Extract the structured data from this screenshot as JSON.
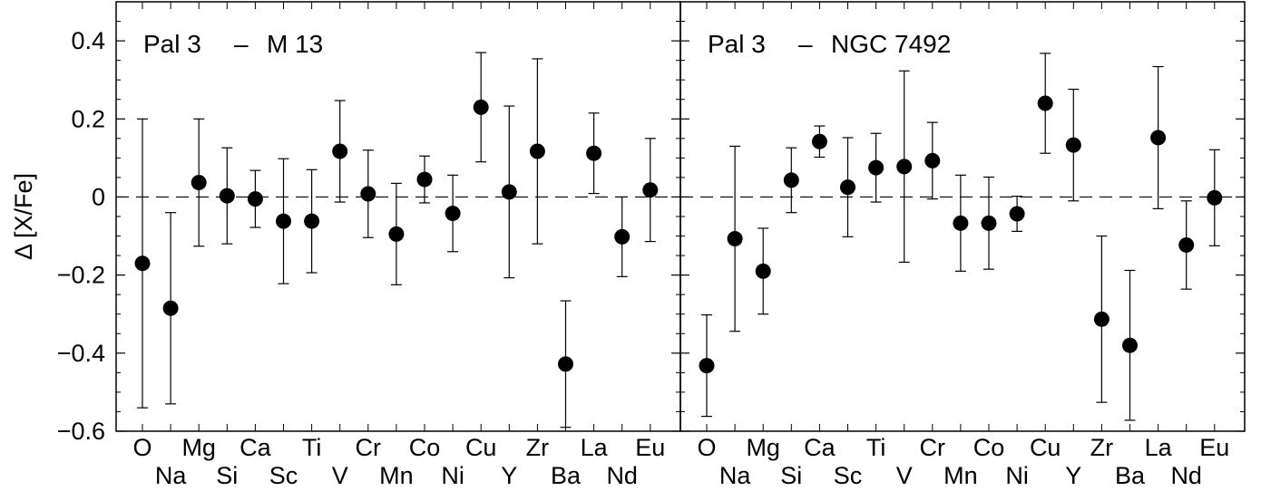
{
  "chart_data": {
    "type": "scatter",
    "ylabel": "Δ [X/Fe]",
    "ylim": [
      -0.6,
      0.5
    ],
    "yticks": [
      -0.6,
      -0.4,
      -0.2,
      0,
      0.2,
      0.4
    ],
    "ytick_labels": [
      "−0.6",
      "−0.4",
      "−0.2",
      "0",
      "0.2",
      "0.4"
    ],
    "elements": [
      "O",
      "Na",
      "Mg",
      "Si",
      "Ca",
      "Sc",
      "Ti",
      "V",
      "Cr",
      "Mn",
      "Co",
      "Ni",
      "Cu",
      "Y",
      "Zr",
      "Ba",
      "La",
      "Nd",
      "Eu"
    ],
    "reference_line": 0,
    "marker_color": "#000000",
    "panels": [
      {
        "title_left": "Pal 3",
        "title_dash": "–",
        "title_right": "M 13",
        "values": [
          -0.17,
          -0.285,
          0.037,
          0.003,
          -0.005,
          -0.062,
          -0.062,
          0.117,
          0.008,
          -0.095,
          0.045,
          -0.042,
          0.23,
          0.013,
          0.117,
          -0.428,
          0.112,
          -0.102,
          0.018
        ],
        "errors": [
          0.37,
          0.245,
          0.163,
          0.123,
          0.073,
          0.16,
          0.132,
          0.13,
          0.112,
          0.13,
          0.06,
          0.098,
          0.14,
          0.22,
          0.237,
          0.162,
          0.103,
          0.102,
          0.132
        ]
      },
      {
        "title_left": "Pal 3",
        "title_dash": "–",
        "title_right": "NGC 7492",
        "values": [
          -0.432,
          -0.107,
          -0.19,
          0.043,
          0.142,
          0.025,
          0.075,
          0.078,
          0.093,
          -0.067,
          -0.067,
          -0.043,
          0.24,
          0.133,
          -0.313,
          -0.38,
          0.152,
          -0.123,
          -0.002
        ],
        "errors": [
          0.13,
          0.237,
          0.11,
          0.083,
          0.04,
          0.127,
          0.088,
          0.245,
          0.098,
          0.123,
          0.118,
          0.045,
          0.128,
          0.143,
          0.213,
          0.192,
          0.182,
          0.113,
          0.123
        ]
      }
    ]
  }
}
